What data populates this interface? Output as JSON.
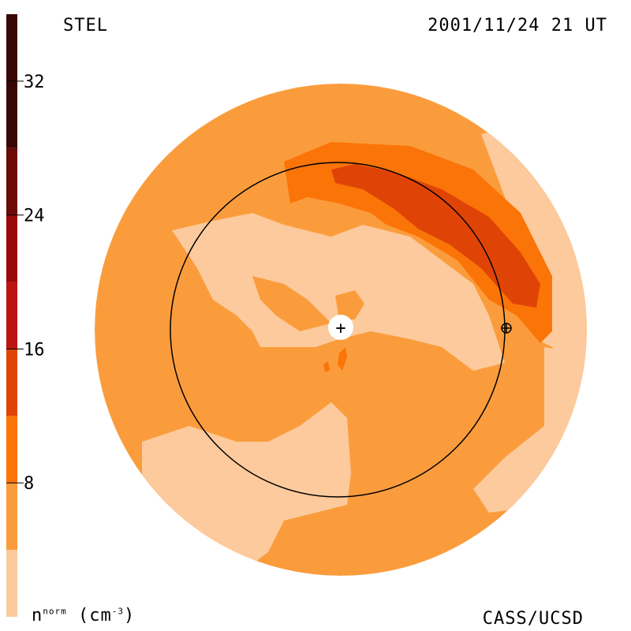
{
  "header": {
    "source": "STEL",
    "datetime": "2001/11/24 21 UT"
  },
  "footer": {
    "credit": "CASS/UCSD",
    "unit_base": "n",
    "unit_sup": "norm",
    "unit_rest": " (cm",
    "unit_exp": "-3",
    "unit_close": ")"
  },
  "chart_data": {
    "type": "heatmap",
    "title": "STEL",
    "subtitle": "2001/11/24 21 UT",
    "colorbar": {
      "label": "n^norm (cm^-3)",
      "range": [
        0,
        36
      ],
      "ticks": [
        8,
        16,
        24,
        32
      ],
      "levels": [
        {
          "min": 0,
          "max": 4,
          "color": "#fcca9c"
        },
        {
          "min": 4,
          "max": 8,
          "color": "#fb9c3c"
        },
        {
          "min": 8,
          "max": 12,
          "color": "#fb7408"
        },
        {
          "min": 12,
          "max": 16,
          "color": "#df4406"
        },
        {
          "min": 16,
          "max": 20,
          "color": "#bc1410"
        },
        {
          "min": 20,
          "max": 24,
          "color": "#9a0a08"
        },
        {
          "min": 24,
          "max": 28,
          "color": "#6c0a06"
        },
        {
          "min": 28,
          "max": 36,
          "color": "#3a0604"
        }
      ]
    },
    "colors": {
      "background": "#fb9c3c",
      "low": "#fcca9c",
      "mid": "#fb7408",
      "high": "#df4406",
      "outline": "#000000"
    },
    "observer_marker": "+",
    "earth_marker": "⊕",
    "earth_orbit": true
  }
}
